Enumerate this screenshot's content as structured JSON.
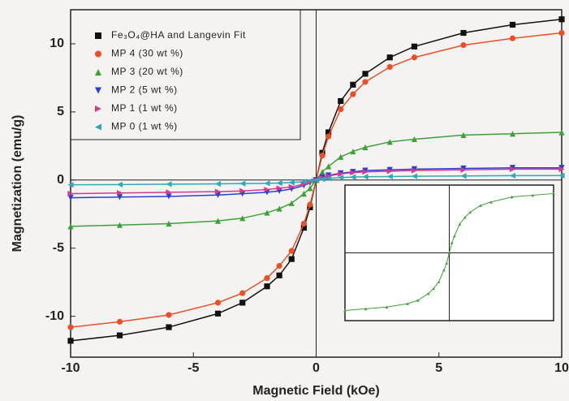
{
  "chart_data": [
    {
      "type": "line",
      "x_label": "Magnetic Field (kOe)",
      "y_label": "Magnetization (emu/g)",
      "xlim": [
        -10,
        10
      ],
      "ylim": [
        -13,
        12.5
      ],
      "xticks": [
        -10,
        -5,
        0,
        5,
        10
      ],
      "yticks": [
        -10,
        -5,
        0,
        5,
        10
      ],
      "legend": "top-left",
      "x": [
        -10,
        -8,
        -6,
        -4,
        -3,
        -2,
        -1.5,
        -1,
        -0.5,
        -0.25,
        0,
        0.25,
        0.5,
        1,
        1.5,
        2,
        3,
        4,
        6,
        8,
        10
      ],
      "series": [
        {
          "name": "Fe₃O₄@HA and Langevin Fit",
          "color": "#111111",
          "marker": "square",
          "values": [
            -11.8,
            -11.4,
            -10.8,
            -9.8,
            -9,
            -7.8,
            -7,
            -5.8,
            -3.5,
            -2,
            0,
            2,
            3.5,
            5.8,
            7,
            7.8,
            9,
            9.8,
            10.8,
            11.4,
            11.8
          ]
        },
        {
          "name": "MP 4  (30 wt %)",
          "color": "#e8502a",
          "marker": "circle",
          "values": [
            -10.8,
            -10.4,
            -9.9,
            -9,
            -8.3,
            -7.2,
            -6.3,
            -5.2,
            -3.2,
            -1.8,
            0,
            1.8,
            3.2,
            5.2,
            6.3,
            7.2,
            8.3,
            9,
            9.9,
            10.4,
            10.8
          ]
        },
        {
          "name": "MP 3  (20 wt %)",
          "color": "#3fa03a",
          "marker": "triangle-up",
          "values": [
            -3.4,
            -3.3,
            -3.2,
            -3,
            -2.8,
            -2.4,
            -2.1,
            -1.7,
            -1,
            -0.6,
            0,
            0.6,
            1,
            1.7,
            2.1,
            2.4,
            2.8,
            3,
            3.3,
            3.4,
            3.5
          ]
        },
        {
          "name": "MP 2  (5 wt %)",
          "color": "#2a3fd0",
          "marker": "triangle-down",
          "values": [
            -1.3,
            -1.25,
            -1.2,
            -1.1,
            -1,
            -0.9,
            -0.8,
            -0.65,
            -0.4,
            -0.2,
            0,
            0.2,
            0.35,
            0.5,
            0.6,
            0.7,
            0.75,
            0.8,
            0.85,
            0.9,
            0.9
          ]
        },
        {
          "name": "MP 1  (1 wt %)",
          "color": "#d4388f",
          "marker": "triangle-right",
          "values": [
            -1,
            -0.95,
            -0.9,
            -0.85,
            -0.8,
            -0.7,
            -0.6,
            -0.5,
            -0.3,
            -0.15,
            0,
            0.15,
            0.3,
            0.45,
            0.55,
            0.6,
            0.65,
            0.7,
            0.75,
            0.8,
            0.8
          ]
        },
        {
          "name": "MP 0  (1 wt %)",
          "color": "#2fa8b8",
          "marker": "triangle-left",
          "values": [
            -0.35,
            -0.33,
            -0.3,
            -0.28,
            -0.26,
            -0.24,
            -0.22,
            -0.18,
            -0.12,
            -0.06,
            0,
            0.06,
            0.12,
            0.18,
            0.22,
            0.24,
            0.26,
            0.28,
            0.3,
            0.32,
            0.33
          ]
        }
      ]
    },
    {
      "type": "line",
      "xlim": [
        -10,
        10
      ],
      "ylim": [
        -4,
        4
      ],
      "x": [
        -10,
        -8,
        -6,
        -4,
        -3,
        -2,
        -1.5,
        -1,
        -0.5,
        -0.25,
        0,
        0.25,
        0.5,
        1,
        1.5,
        2,
        3,
        4,
        6,
        8,
        10
      ],
      "series": [
        {
          "color": "#3fa03a",
          "marker": "triangle-up",
          "values": [
            -3.4,
            -3.3,
            -3.2,
            -3,
            -2.8,
            -2.4,
            -2.1,
            -1.7,
            -1,
            -0.6,
            0,
            0.6,
            1,
            1.7,
            2.1,
            2.4,
            2.8,
            3,
            3.3,
            3.4,
            3.5
          ]
        }
      ]
    }
  ]
}
